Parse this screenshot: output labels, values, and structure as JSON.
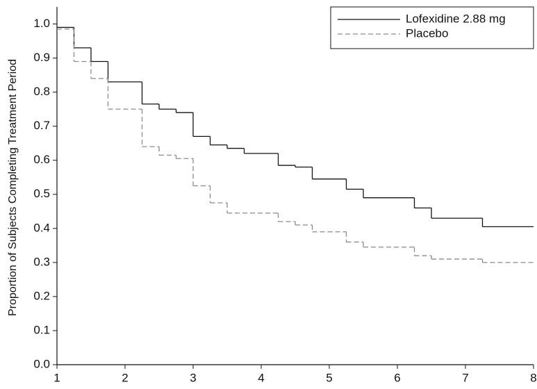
{
  "chart_data": {
    "type": "step",
    "y_label": "Proportion of Subjects Completing Treatment Period",
    "xlim": [
      1,
      8
    ],
    "ylim": [
      0,
      1.05
    ],
    "xticks": [
      1,
      2,
      3,
      4,
      5,
      6,
      7,
      8
    ],
    "yticks": [
      {
        "value": 0,
        "label": "0.0"
      },
      0.1,
      0.2,
      0.3,
      0.4,
      0.5,
      0.6,
      0.7,
      0.8,
      0.9,
      {
        "value": 1,
        "label": "1.0"
      }
    ],
    "grid": false,
    "legend": "top-right",
    "series": [
      {
        "name": "Lofexidine 2.88 mg",
        "color": "#111111",
        "dash": "none",
        "x": [
          1,
          1.25,
          1.5,
          1.75,
          2.25,
          2.5,
          2.75,
          3,
          3.25,
          3.5,
          3.75,
          4.25,
          4.5,
          4.75,
          5.25,
          5.5,
          6.25,
          6.5,
          7.25,
          8
        ],
        "values": [
          0.99,
          0.93,
          0.89,
          0.83,
          0.765,
          0.75,
          0.74,
          0.67,
          0.645,
          0.635,
          0.62,
          0.585,
          0.58,
          0.545,
          0.515,
          0.49,
          0.46,
          0.43,
          0.405,
          0.405
        ]
      },
      {
        "name": "Placebo",
        "color": "#8a8a8a",
        "dash": "7,4",
        "x": [
          1,
          1.25,
          1.5,
          1.75,
          2.25,
          2.5,
          2.75,
          3,
          3.25,
          3.5,
          4.25,
          4.5,
          4.75,
          5.25,
          5.5,
          6.25,
          6.5,
          7.25,
          8
        ],
        "values": [
          0.985,
          0.89,
          0.84,
          0.75,
          0.64,
          0.615,
          0.605,
          0.525,
          0.475,
          0.445,
          0.42,
          0.41,
          0.39,
          0.36,
          0.345,
          0.32,
          0.31,
          0.3,
          0.3
        ]
      }
    ]
  }
}
